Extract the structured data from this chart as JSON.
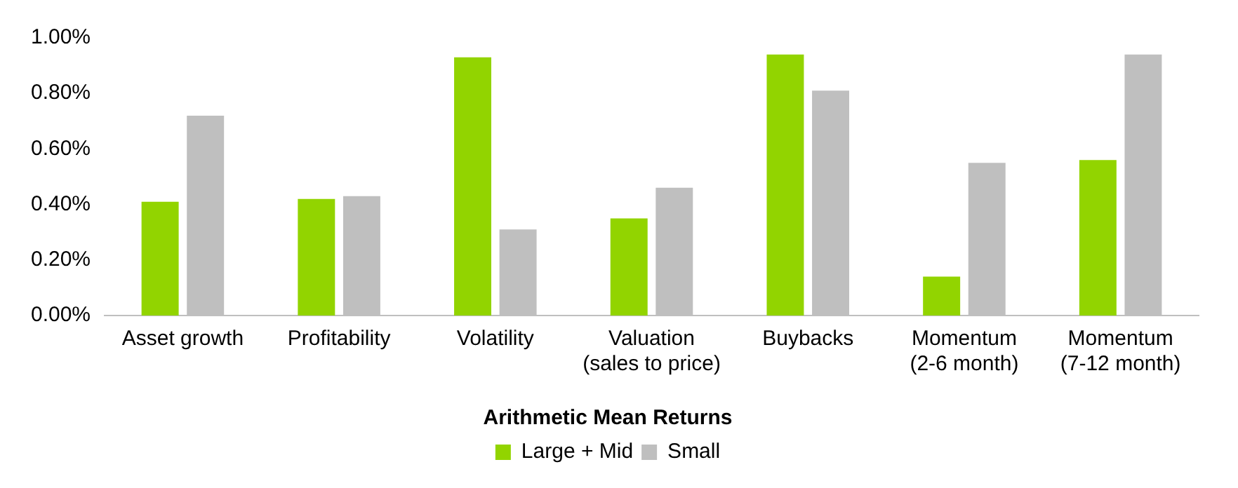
{
  "chart_data": {
    "type": "bar",
    "legend_title": "Arithmetic Mean Returns",
    "categories": [
      "Asset growth",
      "Profitability",
      "Volatility",
      "Valuation (sales to price)",
      "Buybacks",
      "Momentum (2-6 month)",
      "Momentum (7-12 month)"
    ],
    "series": [
      {
        "name": "Large + Mid",
        "color": "#92d400",
        "values": [
          0.41,
          0.42,
          0.93,
          0.35,
          0.94,
          0.14,
          0.56
        ]
      },
      {
        "name": "Small",
        "color": "#bfbfbf",
        "values": [
          0.72,
          0.43,
          0.31,
          0.46,
          0.81,
          0.55,
          0.94
        ]
      }
    ],
    "ylim": [
      0,
      1
    ],
    "yticks": [
      {
        "value": 0,
        "label": "0.00%"
      },
      {
        "value": 0.2,
        "label": "0.20%"
      },
      {
        "value": 0.4,
        "label": "0.40%"
      },
      {
        "value": 0.6,
        "label": "0.60%"
      },
      {
        "value": 0.8,
        "label": "0.80%"
      },
      {
        "value": 1,
        "label": "1.00%"
      }
    ],
    "grid": false,
    "legend": "bottom"
  }
}
